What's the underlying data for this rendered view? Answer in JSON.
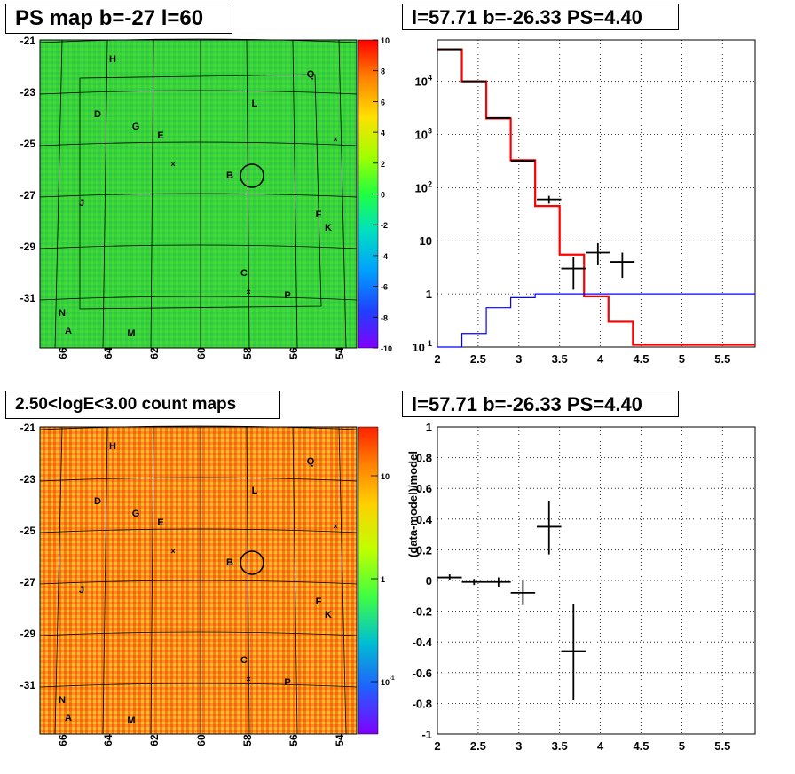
{
  "titles": {
    "ps_map": "PS map b=-27 l=60",
    "spectrum": "l=57.71 b=-26.33 PS=4.40",
    "count_map": "2.50<logE<3.00 count maps",
    "residual": "l=57.71 b=-26.33 PS=4.40"
  },
  "sky_maps": {
    "x_ticks": [
      "66",
      "64",
      "62",
      "60",
      "58",
      "56",
      "54"
    ],
    "y_ticks": [
      "-21",
      "-23",
      "-25",
      "-27",
      "-29",
      "-31"
    ],
    "source_labels": [
      "H",
      "Q",
      "L",
      "D",
      "G",
      "E",
      "B",
      "J",
      "F",
      "K",
      "C",
      "P",
      "N",
      "A",
      "M"
    ],
    "ps_colorbar_ticks": [
      "10",
      "8",
      "6",
      "4",
      "2",
      "0",
      "-2",
      "-4",
      "-6",
      "-8",
      "-10"
    ],
    "count_colorbar_ticks": [
      "10",
      "1",
      "10-1"
    ]
  },
  "chart_data": [
    {
      "type": "line",
      "title": "l=57.71 b=-26.33 PS=4.40",
      "xlabel": "",
      "ylabel": "",
      "xlim": [
        2,
        5.9
      ],
      "ylim": [
        0.1,
        60000
      ],
      "yscale": "log",
      "grid": true,
      "x_ticks": [
        "2",
        "2.5",
        "3",
        "3.5",
        "4",
        "4.5",
        "5",
        "5.5"
      ],
      "y_ticks": [
        "10-1",
        "1",
        "10",
        "102",
        "103",
        "104"
      ],
      "bin_edges": [
        2.0,
        2.3,
        2.6,
        2.9,
        3.2,
        3.5,
        3.8,
        4.1,
        4.4,
        4.7,
        5.0,
        5.3,
        5.6,
        5.9
      ],
      "series": [
        {
          "color": "#ff0000",
          "values": [
            40000,
            10000,
            2000,
            330,
            45,
            5.5,
            0.9,
            0.3,
            0.11,
            0.11,
            0.11,
            0.11,
            0.11
          ]
        },
        {
          "color": "#0000ff",
          "values": [
            0.05,
            0.18,
            0.55,
            0.85,
            1.0,
            1.0,
            1.0,
            1.0,
            1.0,
            1.0,
            1.0,
            1.0,
            1.0
          ]
        }
      ],
      "data_points": [
        {
          "x": 2.15,
          "y": 40000,
          "xerr": 0.15,
          "ylo": 39600,
          "yhi": 40400
        },
        {
          "x": 2.45,
          "y": 10000,
          "xerr": 0.15,
          "ylo": 9900,
          "yhi": 10100
        },
        {
          "x": 2.75,
          "y": 2050,
          "xerr": 0.15,
          "ylo": 2000,
          "yhi": 2100
        },
        {
          "x": 3.05,
          "y": 320,
          "xerr": 0.15,
          "ylo": 300,
          "yhi": 340
        },
        {
          "x": 3.37,
          "y": 60,
          "xerr": 0.15,
          "ylo": 50,
          "yhi": 70
        },
        {
          "x": 3.67,
          "y": 3,
          "xerr": 0.15,
          "ylo": 1.2,
          "yhi": 5
        },
        {
          "x": 3.97,
          "y": 6,
          "xerr": 0.15,
          "ylo": 3.5,
          "yhi": 9
        },
        {
          "x": 4.27,
          "y": 4,
          "xerr": 0.15,
          "ylo": 2,
          "yhi": 6
        }
      ]
    },
    {
      "type": "scatter",
      "title": "l=57.71 b=-26.33 PS=4.40",
      "xlabel": "",
      "ylabel": "(data-model)/model",
      "xlim": [
        2,
        5.9
      ],
      "ylim": [
        -1,
        1
      ],
      "grid": true,
      "x_ticks": [
        "2",
        "2.5",
        "3",
        "3.5",
        "4",
        "4.5",
        "5",
        "5.5"
      ],
      "y_ticks": [
        "-1",
        "-0.8",
        "-0.6",
        "-0.4",
        "-0.2",
        "0",
        "0.2",
        "0.4",
        "0.6",
        "0.8",
        "1"
      ],
      "points": [
        {
          "x": 2.15,
          "y": 0.02,
          "xerr": 0.15,
          "ylo": 0.0,
          "yhi": 0.04
        },
        {
          "x": 2.45,
          "y": -0.01,
          "xerr": 0.15,
          "ylo": -0.03,
          "yhi": 0.01
        },
        {
          "x": 2.75,
          "y": -0.01,
          "xerr": 0.15,
          "ylo": -0.04,
          "yhi": 0.02
        },
        {
          "x": 3.05,
          "y": -0.08,
          "xerr": 0.15,
          "ylo": -0.16,
          "yhi": 0.0
        },
        {
          "x": 3.37,
          "y": 0.35,
          "xerr": 0.15,
          "ylo": 0.17,
          "yhi": 0.52
        },
        {
          "x": 3.67,
          "y": -0.46,
          "xerr": 0.15,
          "ylo": -0.78,
          "yhi": -0.15
        }
      ]
    }
  ]
}
